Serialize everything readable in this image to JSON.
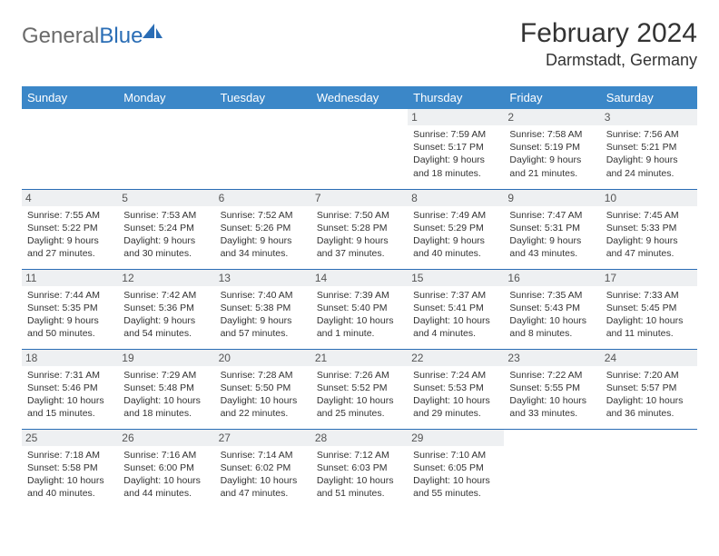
{
  "logo": {
    "word1": "General",
    "word2": "Blue"
  },
  "title": "February 2024",
  "location": "Darmstadt, Germany",
  "colors": {
    "header_bg": "#3b87c8",
    "header_text": "#ffffff",
    "border": "#2a6db5",
    "daynum_bg": "#eef0f2",
    "logo_gray": "#6b6b6b",
    "logo_blue": "#2a6db5",
    "body_text": "#333333",
    "page_bg": "#ffffff"
  },
  "weekdays": [
    "Sunday",
    "Monday",
    "Tuesday",
    "Wednesday",
    "Thursday",
    "Friday",
    "Saturday"
  ],
  "weeks": [
    [
      {
        "day": "",
        "sunrise": "",
        "sunset": "",
        "daylight": ""
      },
      {
        "day": "",
        "sunrise": "",
        "sunset": "",
        "daylight": ""
      },
      {
        "day": "",
        "sunrise": "",
        "sunset": "",
        "daylight": ""
      },
      {
        "day": "",
        "sunrise": "",
        "sunset": "",
        "daylight": ""
      },
      {
        "day": "1",
        "sunrise": "Sunrise: 7:59 AM",
        "sunset": "Sunset: 5:17 PM",
        "daylight": "Daylight: 9 hours and 18 minutes."
      },
      {
        "day": "2",
        "sunrise": "Sunrise: 7:58 AM",
        "sunset": "Sunset: 5:19 PM",
        "daylight": "Daylight: 9 hours and 21 minutes."
      },
      {
        "day": "3",
        "sunrise": "Sunrise: 7:56 AM",
        "sunset": "Sunset: 5:21 PM",
        "daylight": "Daylight: 9 hours and 24 minutes."
      }
    ],
    [
      {
        "day": "4",
        "sunrise": "Sunrise: 7:55 AM",
        "sunset": "Sunset: 5:22 PM",
        "daylight": "Daylight: 9 hours and 27 minutes."
      },
      {
        "day": "5",
        "sunrise": "Sunrise: 7:53 AM",
        "sunset": "Sunset: 5:24 PM",
        "daylight": "Daylight: 9 hours and 30 minutes."
      },
      {
        "day": "6",
        "sunrise": "Sunrise: 7:52 AM",
        "sunset": "Sunset: 5:26 PM",
        "daylight": "Daylight: 9 hours and 34 minutes."
      },
      {
        "day": "7",
        "sunrise": "Sunrise: 7:50 AM",
        "sunset": "Sunset: 5:28 PM",
        "daylight": "Daylight: 9 hours and 37 minutes."
      },
      {
        "day": "8",
        "sunrise": "Sunrise: 7:49 AM",
        "sunset": "Sunset: 5:29 PM",
        "daylight": "Daylight: 9 hours and 40 minutes."
      },
      {
        "day": "9",
        "sunrise": "Sunrise: 7:47 AM",
        "sunset": "Sunset: 5:31 PM",
        "daylight": "Daylight: 9 hours and 43 minutes."
      },
      {
        "day": "10",
        "sunrise": "Sunrise: 7:45 AM",
        "sunset": "Sunset: 5:33 PM",
        "daylight": "Daylight: 9 hours and 47 minutes."
      }
    ],
    [
      {
        "day": "11",
        "sunrise": "Sunrise: 7:44 AM",
        "sunset": "Sunset: 5:35 PM",
        "daylight": "Daylight: 9 hours and 50 minutes."
      },
      {
        "day": "12",
        "sunrise": "Sunrise: 7:42 AM",
        "sunset": "Sunset: 5:36 PM",
        "daylight": "Daylight: 9 hours and 54 minutes."
      },
      {
        "day": "13",
        "sunrise": "Sunrise: 7:40 AM",
        "sunset": "Sunset: 5:38 PM",
        "daylight": "Daylight: 9 hours and 57 minutes."
      },
      {
        "day": "14",
        "sunrise": "Sunrise: 7:39 AM",
        "sunset": "Sunset: 5:40 PM",
        "daylight": "Daylight: 10 hours and 1 minute."
      },
      {
        "day": "15",
        "sunrise": "Sunrise: 7:37 AM",
        "sunset": "Sunset: 5:41 PM",
        "daylight": "Daylight: 10 hours and 4 minutes."
      },
      {
        "day": "16",
        "sunrise": "Sunrise: 7:35 AM",
        "sunset": "Sunset: 5:43 PM",
        "daylight": "Daylight: 10 hours and 8 minutes."
      },
      {
        "day": "17",
        "sunrise": "Sunrise: 7:33 AM",
        "sunset": "Sunset: 5:45 PM",
        "daylight": "Daylight: 10 hours and 11 minutes."
      }
    ],
    [
      {
        "day": "18",
        "sunrise": "Sunrise: 7:31 AM",
        "sunset": "Sunset: 5:46 PM",
        "daylight": "Daylight: 10 hours and 15 minutes."
      },
      {
        "day": "19",
        "sunrise": "Sunrise: 7:29 AM",
        "sunset": "Sunset: 5:48 PM",
        "daylight": "Daylight: 10 hours and 18 minutes."
      },
      {
        "day": "20",
        "sunrise": "Sunrise: 7:28 AM",
        "sunset": "Sunset: 5:50 PM",
        "daylight": "Daylight: 10 hours and 22 minutes."
      },
      {
        "day": "21",
        "sunrise": "Sunrise: 7:26 AM",
        "sunset": "Sunset: 5:52 PM",
        "daylight": "Daylight: 10 hours and 25 minutes."
      },
      {
        "day": "22",
        "sunrise": "Sunrise: 7:24 AM",
        "sunset": "Sunset: 5:53 PM",
        "daylight": "Daylight: 10 hours and 29 minutes."
      },
      {
        "day": "23",
        "sunrise": "Sunrise: 7:22 AM",
        "sunset": "Sunset: 5:55 PM",
        "daylight": "Daylight: 10 hours and 33 minutes."
      },
      {
        "day": "24",
        "sunrise": "Sunrise: 7:20 AM",
        "sunset": "Sunset: 5:57 PM",
        "daylight": "Daylight: 10 hours and 36 minutes."
      }
    ],
    [
      {
        "day": "25",
        "sunrise": "Sunrise: 7:18 AM",
        "sunset": "Sunset: 5:58 PM",
        "daylight": "Daylight: 10 hours and 40 minutes."
      },
      {
        "day": "26",
        "sunrise": "Sunrise: 7:16 AM",
        "sunset": "Sunset: 6:00 PM",
        "daylight": "Daylight: 10 hours and 44 minutes."
      },
      {
        "day": "27",
        "sunrise": "Sunrise: 7:14 AM",
        "sunset": "Sunset: 6:02 PM",
        "daylight": "Daylight: 10 hours and 47 minutes."
      },
      {
        "day": "28",
        "sunrise": "Sunrise: 7:12 AM",
        "sunset": "Sunset: 6:03 PM",
        "daylight": "Daylight: 10 hours and 51 minutes."
      },
      {
        "day": "29",
        "sunrise": "Sunrise: 7:10 AM",
        "sunset": "Sunset: 6:05 PM",
        "daylight": "Daylight: 10 hours and 55 minutes."
      },
      {
        "day": "",
        "sunrise": "",
        "sunset": "",
        "daylight": ""
      },
      {
        "day": "",
        "sunrise": "",
        "sunset": "",
        "daylight": ""
      }
    ]
  ]
}
